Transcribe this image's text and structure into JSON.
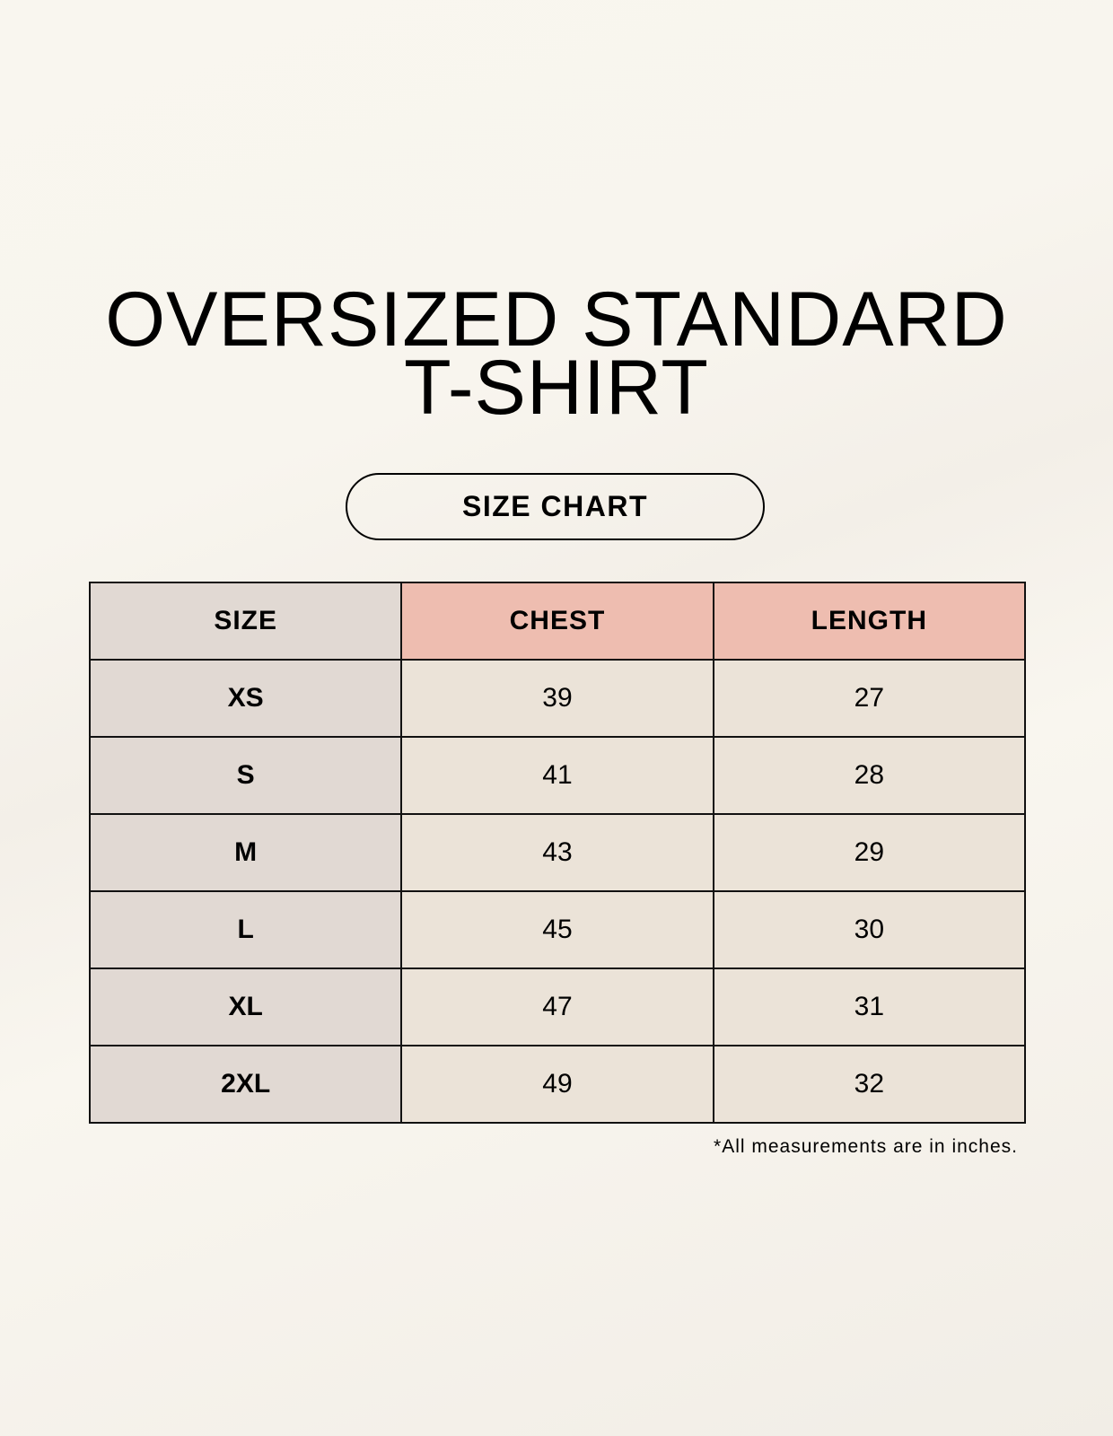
{
  "title_line1": "OVERSIZED STANDARD",
  "title_line2": "T-SHIRT",
  "badge": "SIZE CHART",
  "table": {
    "headers": [
      "SIZE",
      "CHEST",
      "LENGTH"
    ],
    "rows": [
      [
        "XS",
        "39",
        "27"
      ],
      [
        "S",
        "41",
        "28"
      ],
      [
        "M",
        "43",
        "29"
      ],
      [
        "L",
        "45",
        "30"
      ],
      [
        "XL",
        "47",
        "31"
      ],
      [
        "2XL",
        "49",
        "32"
      ]
    ]
  },
  "note": "*All measurements are in inches.",
  "colors": {
    "size_column": "#e1d9d3",
    "header_accent": "#eebdb0",
    "value_cells": "#ebe3d8"
  }
}
